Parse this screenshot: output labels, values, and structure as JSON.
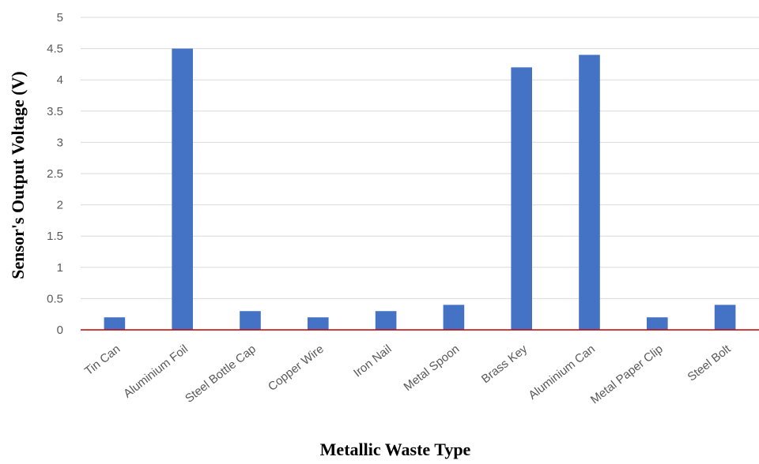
{
  "chart_data": {
    "type": "bar",
    "title": "",
    "xlabel": "Metallic Waste Type",
    "ylabel": "Sensor's Output Voltage (V)",
    "categories": [
      "Tin Can",
      "Aluminium Foil",
      "Steel Bottle Cap",
      "Copper Wire",
      "Iron Nail",
      "Metal Spoon",
      "Brass Key",
      "Aluminium Can",
      "Metal Paper Clip",
      "Steel Bolt"
    ],
    "values": [
      0.2,
      4.5,
      0.3,
      0.2,
      0.3,
      0.4,
      4.2,
      4.4,
      0.2,
      0.4
    ],
    "ylim": [
      0,
      5
    ],
    "yticks": [
      "0",
      "0.5",
      "1",
      "1.5",
      "2",
      "2.5",
      "3",
      "3.5",
      "4",
      "4.5",
      "5"
    ],
    "grid": true,
    "legend": "none",
    "colors": {
      "bar": "#4472c4",
      "grid": "#d9d9d9",
      "baseline": "#c00000"
    }
  }
}
